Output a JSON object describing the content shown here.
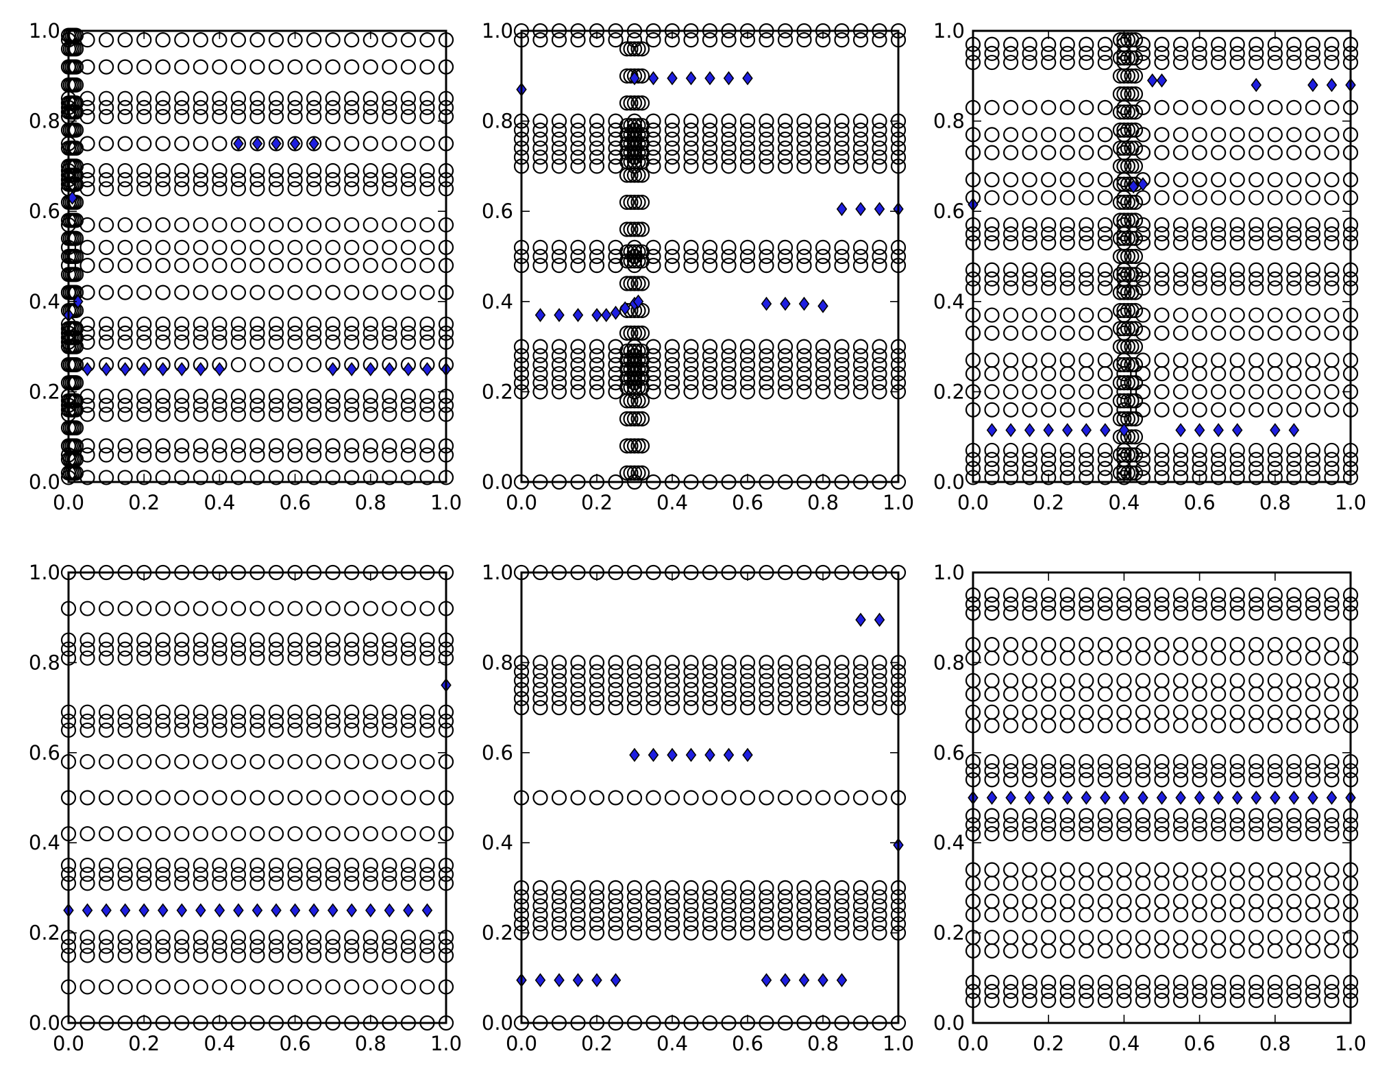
{
  "colors": {
    "background": "#ffffff",
    "circle_edge": "#000000",
    "diamond_fill": "#1f1fe0",
    "diamond_edge": "#000000",
    "axes": "#000000"
  },
  "chart_data": [
    {
      "type": "scatter",
      "panel": "top-left",
      "xlim": [
        0,
        1
      ],
      "ylim": [
        0,
        1
      ],
      "xticks": [
        "0.0",
        "0.2",
        "0.4",
        "0.6",
        "0.8",
        "1.0"
      ],
      "yticks": [
        "0.0",
        "0.2",
        "0.4",
        "0.6",
        "0.8",
        "1.0"
      ],
      "circle_x": [
        0.0,
        0.05,
        0.1,
        0.15,
        0.2,
        0.25,
        0.3,
        0.35,
        0.4,
        0.45,
        0.5,
        0.55,
        0.6,
        0.65,
        0.7,
        0.75,
        0.8,
        0.85,
        0.9,
        0.95,
        1.0
      ],
      "circle_y": [
        0.01,
        0.06,
        0.08,
        0.15,
        0.17,
        0.19,
        0.26,
        0.31,
        0.33,
        0.35,
        0.42,
        0.48,
        0.52,
        0.57,
        0.65,
        0.67,
        0.69,
        0.75,
        0.81,
        0.83,
        0.85,
        0.92,
        0.98
      ],
      "circle_edge_x": [
        0.0,
        0.005,
        0.01,
        0.015,
        0.02
      ],
      "circle_edge_y": [
        0.02,
        0.05,
        0.08,
        0.12,
        0.16,
        0.18,
        0.22,
        0.26,
        0.3,
        0.32,
        0.34,
        0.38,
        0.42,
        0.46,
        0.5,
        0.54,
        0.58,
        0.62,
        0.66,
        0.68,
        0.7,
        0.74,
        0.78,
        0.82,
        0.84,
        0.88,
        0.92,
        0.96,
        0.99
      ],
      "diamonds": [
        [
          0.0,
          0.37
        ],
        [
          0.01,
          0.63
        ],
        [
          0.025,
          0.4
        ],
        [
          0.05,
          0.25
        ],
        [
          0.1,
          0.25
        ],
        [
          0.15,
          0.25
        ],
        [
          0.2,
          0.25
        ],
        [
          0.25,
          0.25
        ],
        [
          0.3,
          0.25
        ],
        [
          0.35,
          0.25
        ],
        [
          0.4,
          0.25
        ],
        [
          0.45,
          0.75
        ],
        [
          0.5,
          0.75
        ],
        [
          0.55,
          0.75
        ],
        [
          0.6,
          0.75
        ],
        [
          0.65,
          0.75
        ],
        [
          0.7,
          0.25
        ],
        [
          0.75,
          0.25
        ],
        [
          0.8,
          0.25
        ],
        [
          0.85,
          0.25
        ],
        [
          0.9,
          0.25
        ],
        [
          0.95,
          0.25
        ],
        [
          1.0,
          0.25
        ]
      ]
    },
    {
      "type": "scatter",
      "panel": "top-middle",
      "xlim": [
        0,
        1
      ],
      "ylim": [
        0,
        1
      ],
      "xticks": [
        "0.0",
        "0.2",
        "0.4",
        "0.6",
        "0.8",
        "1.0"
      ],
      "yticks": [
        "0.0",
        "0.2",
        "0.4",
        "0.6",
        "0.8",
        "1.0"
      ],
      "circle_x": [
        0.0,
        0.05,
        0.1,
        0.15,
        0.2,
        0.25,
        0.3,
        0.35,
        0.4,
        0.45,
        0.5,
        0.55,
        0.6,
        0.65,
        0.7,
        0.75,
        0.8,
        0.85,
        0.9,
        0.95,
        1.0
      ],
      "circle_y": [
        0.0,
        0.2,
        0.22,
        0.24,
        0.26,
        0.28,
        0.3,
        0.48,
        0.5,
        0.52,
        0.7,
        0.72,
        0.74,
        0.76,
        0.78,
        0.8,
        0.98,
        1.0
      ],
      "circle_edge_x": [
        0.28,
        0.29,
        0.3,
        0.31,
        0.32
      ],
      "circle_edge_y": [
        0.02,
        0.08,
        0.14,
        0.18,
        0.21,
        0.23,
        0.25,
        0.27,
        0.29,
        0.33,
        0.38,
        0.44,
        0.49,
        0.51,
        0.56,
        0.62,
        0.68,
        0.71,
        0.73,
        0.75,
        0.77,
        0.79,
        0.84,
        0.9,
        0.96
      ],
      "diamonds": [
        [
          0.0,
          0.87
        ],
        [
          0.05,
          0.37
        ],
        [
          0.1,
          0.37
        ],
        [
          0.15,
          0.37
        ],
        [
          0.2,
          0.37
        ],
        [
          0.225,
          0.37
        ],
        [
          0.25,
          0.375
        ],
        [
          0.275,
          0.385
        ],
        [
          0.3,
          0.395
        ],
        [
          0.31,
          0.4
        ],
        [
          0.3,
          0.895
        ],
        [
          0.35,
          0.895
        ],
        [
          0.4,
          0.895
        ],
        [
          0.45,
          0.895
        ],
        [
          0.5,
          0.895
        ],
        [
          0.55,
          0.895
        ],
        [
          0.6,
          0.895
        ],
        [
          0.65,
          0.395
        ],
        [
          0.7,
          0.395
        ],
        [
          0.75,
          0.395
        ],
        [
          0.8,
          0.39
        ],
        [
          0.85,
          0.605
        ],
        [
          0.9,
          0.605
        ],
        [
          0.95,
          0.605
        ],
        [
          1.0,
          0.605
        ]
      ]
    },
    {
      "type": "scatter",
      "panel": "top-right",
      "xlim": [
        0,
        1
      ],
      "ylim": [
        0,
        1
      ],
      "xticks": [
        "0.0",
        "0.2",
        "0.4",
        "0.6",
        "0.8",
        "1.0"
      ],
      "yticks": [
        "0.0",
        "0.2",
        "0.4",
        "0.6",
        "0.8",
        "1.0"
      ],
      "circle_x": [
        0.0,
        0.05,
        0.1,
        0.15,
        0.2,
        0.25,
        0.3,
        0.35,
        0.4,
        0.45,
        0.5,
        0.55,
        0.6,
        0.65,
        0.7,
        0.75,
        0.8,
        0.85,
        0.9,
        0.95,
        1.0
      ],
      "circle_y": [
        0.01,
        0.03,
        0.05,
        0.07,
        0.16,
        0.2,
        0.24,
        0.27,
        0.33,
        0.37,
        0.43,
        0.45,
        0.47,
        0.53,
        0.55,
        0.57,
        0.63,
        0.67,
        0.73,
        0.77,
        0.83,
        0.93,
        0.95,
        0.97
      ],
      "circle_edge_x": [
        0.39,
        0.4,
        0.41,
        0.42,
        0.43
      ],
      "circle_edge_y": [
        0.02,
        0.06,
        0.1,
        0.14,
        0.18,
        0.22,
        0.26,
        0.3,
        0.34,
        0.38,
        0.42,
        0.46,
        0.5,
        0.54,
        0.58,
        0.62,
        0.66,
        0.7,
        0.74,
        0.78,
        0.82,
        0.86,
        0.9,
        0.94,
        0.98
      ],
      "diamonds": [
        [
          0.0,
          0.615
        ],
        [
          0.05,
          0.115
        ],
        [
          0.1,
          0.115
        ],
        [
          0.15,
          0.115
        ],
        [
          0.2,
          0.115
        ],
        [
          0.25,
          0.115
        ],
        [
          0.3,
          0.115
        ],
        [
          0.35,
          0.115
        ],
        [
          0.4,
          0.115
        ],
        [
          0.425,
          0.655
        ],
        [
          0.45,
          0.66
        ],
        [
          0.475,
          0.89
        ],
        [
          0.5,
          0.89
        ],
        [
          0.55,
          0.115
        ],
        [
          0.6,
          0.115
        ],
        [
          0.65,
          0.115
        ],
        [
          0.7,
          0.115
        ],
        [
          0.75,
          0.88
        ],
        [
          0.8,
          0.115
        ],
        [
          0.85,
          0.115
        ],
        [
          0.9,
          0.88
        ],
        [
          0.95,
          0.88
        ],
        [
          1.0,
          0.88
        ]
      ]
    },
    {
      "type": "scatter",
      "panel": "bottom-left",
      "xlim": [
        0,
        1
      ],
      "ylim": [
        0,
        1
      ],
      "xticks": [
        "0.0",
        "0.2",
        "0.4",
        "0.6",
        "0.8",
        "1.0"
      ],
      "yticks": [
        "0.0",
        "0.2",
        "0.4",
        "0.6",
        "0.8",
        "1.0"
      ],
      "circle_x": [
        0.0,
        0.05,
        0.1,
        0.15,
        0.2,
        0.25,
        0.3,
        0.35,
        0.4,
        0.45,
        0.5,
        0.55,
        0.6,
        0.65,
        0.7,
        0.75,
        0.8,
        0.85,
        0.9,
        0.95,
        1.0
      ],
      "circle_y": [
        0.0,
        0.08,
        0.15,
        0.17,
        0.19,
        0.31,
        0.33,
        0.35,
        0.42,
        0.5,
        0.58,
        0.65,
        0.67,
        0.69,
        0.81,
        0.83,
        0.85,
        0.92,
        1.0
      ],
      "circle_edge_x": [],
      "circle_edge_y": [],
      "diamonds": [
        [
          0.0,
          0.25
        ],
        [
          0.05,
          0.25
        ],
        [
          0.1,
          0.25
        ],
        [
          0.15,
          0.25
        ],
        [
          0.2,
          0.25
        ],
        [
          0.25,
          0.25
        ],
        [
          0.3,
          0.25
        ],
        [
          0.35,
          0.25
        ],
        [
          0.4,
          0.25
        ],
        [
          0.45,
          0.25
        ],
        [
          0.5,
          0.25
        ],
        [
          0.55,
          0.25
        ],
        [
          0.6,
          0.25
        ],
        [
          0.65,
          0.25
        ],
        [
          0.7,
          0.25
        ],
        [
          0.75,
          0.25
        ],
        [
          0.8,
          0.25
        ],
        [
          0.85,
          0.25
        ],
        [
          0.9,
          0.25
        ],
        [
          0.95,
          0.25
        ],
        [
          1.0,
          0.75
        ]
      ]
    },
    {
      "type": "scatter",
      "panel": "bottom-middle",
      "xlim": [
        0,
        1
      ],
      "ylim": [
        0,
        1
      ],
      "xticks": [
        "0.0",
        "0.2",
        "0.4",
        "0.6",
        "0.8",
        "1.0"
      ],
      "yticks": [
        "0.0",
        "0.2",
        "0.4",
        "0.6",
        "0.8",
        "1.0"
      ],
      "circle_x": [
        0.0,
        0.05,
        0.1,
        0.15,
        0.2,
        0.25,
        0.3,
        0.35,
        0.4,
        0.45,
        0.5,
        0.55,
        0.6,
        0.65,
        0.7,
        0.75,
        0.8,
        0.85,
        0.9,
        0.95,
        1.0
      ],
      "circle_y": [
        0.0,
        0.2,
        0.22,
        0.24,
        0.26,
        0.28,
        0.3,
        0.5,
        0.7,
        0.72,
        0.74,
        0.76,
        0.78,
        0.8,
        1.0
      ],
      "circle_edge_x": [],
      "circle_edge_y": [],
      "diamonds": [
        [
          0.0,
          0.095
        ],
        [
          0.05,
          0.095
        ],
        [
          0.1,
          0.095
        ],
        [
          0.15,
          0.095
        ],
        [
          0.2,
          0.095
        ],
        [
          0.25,
          0.095
        ],
        [
          0.3,
          0.595
        ],
        [
          0.35,
          0.595
        ],
        [
          0.4,
          0.595
        ],
        [
          0.45,
          0.595
        ],
        [
          0.5,
          0.595
        ],
        [
          0.55,
          0.595
        ],
        [
          0.6,
          0.595
        ],
        [
          0.65,
          0.095
        ],
        [
          0.7,
          0.095
        ],
        [
          0.75,
          0.095
        ],
        [
          0.8,
          0.095
        ],
        [
          0.85,
          0.095
        ],
        [
          0.9,
          0.895
        ],
        [
          0.95,
          0.895
        ],
        [
          1.0,
          0.395
        ]
      ]
    },
    {
      "type": "scatter",
      "panel": "bottom-right",
      "xlim": [
        0,
        1
      ],
      "ylim": [
        0,
        1
      ],
      "xticks": [
        "0.0",
        "0.2",
        "0.4",
        "0.6",
        "0.8",
        "1.0"
      ],
      "yticks": [
        "0.0",
        "0.2",
        "0.4",
        "0.6",
        "0.8",
        "1.0"
      ],
      "circle_x": [
        0.0,
        0.05,
        0.1,
        0.15,
        0.2,
        0.25,
        0.3,
        0.35,
        0.4,
        0.45,
        0.5,
        0.55,
        0.6,
        0.65,
        0.7,
        0.75,
        0.8,
        0.85,
        0.9,
        0.95,
        1.0
      ],
      "circle_y": [
        0.05,
        0.07,
        0.09,
        0.16,
        0.19,
        0.24,
        0.27,
        0.31,
        0.34,
        0.42,
        0.44,
        0.46,
        0.54,
        0.56,
        0.58,
        0.66,
        0.69,
        0.73,
        0.76,
        0.81,
        0.84,
        0.91,
        0.93,
        0.95
      ],
      "circle_edge_x": [],
      "circle_edge_y": [],
      "diamonds": [
        [
          0.0,
          0.5
        ],
        [
          0.05,
          0.5
        ],
        [
          0.1,
          0.5
        ],
        [
          0.15,
          0.5
        ],
        [
          0.2,
          0.5
        ],
        [
          0.25,
          0.5
        ],
        [
          0.3,
          0.5
        ],
        [
          0.35,
          0.5
        ],
        [
          0.4,
          0.5
        ],
        [
          0.45,
          0.5
        ],
        [
          0.5,
          0.5
        ],
        [
          0.55,
          0.5
        ],
        [
          0.6,
          0.5
        ],
        [
          0.65,
          0.5
        ],
        [
          0.7,
          0.5
        ],
        [
          0.75,
          0.5
        ],
        [
          0.8,
          0.5
        ],
        [
          0.85,
          0.5
        ],
        [
          0.9,
          0.5
        ],
        [
          0.95,
          0.5
        ],
        [
          1.0,
          0.5
        ]
      ]
    }
  ]
}
